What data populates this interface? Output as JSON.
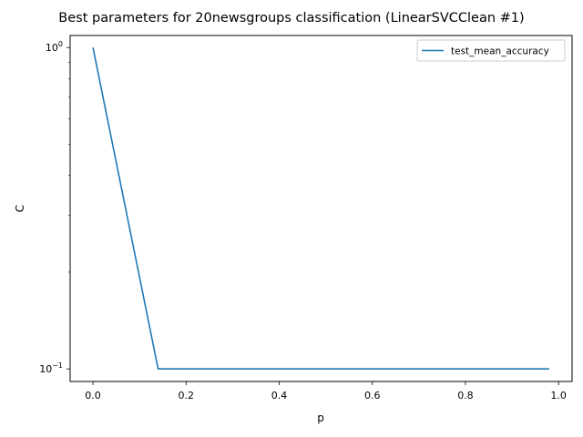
{
  "chart_data": {
    "type": "line",
    "title": "Best parameters for 20newsgroups classification (LinearSVCClean #1)",
    "xlabel": "p",
    "ylabel": "C",
    "yscale": "log",
    "xlim": [
      -0.049,
      1.029
    ],
    "ylim": [
      0.0914,
      1.09
    ],
    "grid": false,
    "legend_position": "top-right",
    "x_ticks": [
      0.0,
      0.2,
      0.4,
      0.6,
      0.8,
      1.0
    ],
    "x_tick_labels": [
      "0.0",
      "0.2",
      "0.4",
      "0.6",
      "0.8",
      "1.0"
    ],
    "y_ticks": [
      0.1,
      1.0
    ],
    "y_tick_labels": [
      {
        "base": "10",
        "exp": "−1"
      },
      {
        "base": "10",
        "exp": "0"
      }
    ],
    "series": [
      {
        "name": "test_mean_accuracy",
        "color": "#1f77b4",
        "x": [
          0.0,
          0.14,
          0.28,
          0.42,
          0.56,
          0.7,
          0.84,
          0.98
        ],
        "y": [
          1.0,
          0.1,
          0.1,
          0.1,
          0.1,
          0.1,
          0.1,
          0.1
        ]
      }
    ]
  }
}
